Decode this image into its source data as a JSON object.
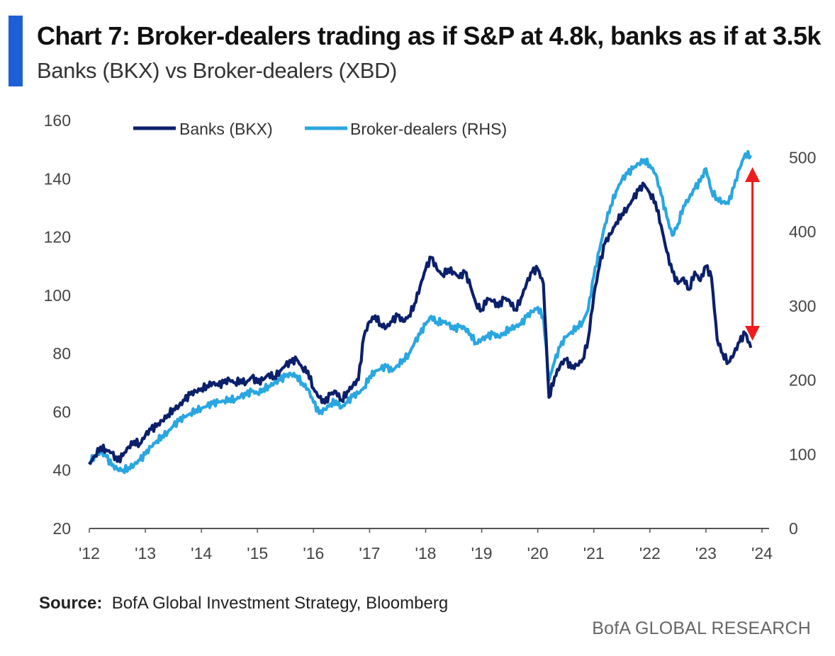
{
  "title": "Chart 7: Broker-dealers trading as if S&P at 4.8k, banks as if at 3.5k",
  "subtitle": "Banks (BKX) vs Broker-dealers (XBD)",
  "source_label": "Source:",
  "source_text": "BofA Global Investment Strategy, Bloomberg",
  "brand": "BofA GLOBAL RESEARCH",
  "colors": {
    "banks": "#0b1f6b",
    "brokers": "#2aa6e0",
    "arrow": "#ee1c1c",
    "accent": "#1f5fd6"
  },
  "chart_data": {
    "type": "line",
    "x_tick_labels": [
      "'12",
      "'13",
      "'14",
      "'15",
      "'16",
      "'17",
      "'18",
      "'19",
      "'20",
      "'21",
      "'22",
      "'23",
      "'24"
    ],
    "xlim": [
      2012,
      2024
    ],
    "ylim_left": [
      20,
      160
    ],
    "ylim_right": [
      0,
      550
    ],
    "left_ticks": [
      20,
      40,
      60,
      80,
      100,
      120,
      140,
      160
    ],
    "right_ticks": [
      0,
      100,
      200,
      300,
      400,
      500
    ],
    "legend": [
      "Banks (BKX)",
      "Broker-dealers (RHS)"
    ],
    "legend_position": "top-left",
    "annotation": "red double-headed arrow at late 2023 between Broker-dealers ~480 (RHS) and Banks ~85 (LHS)",
    "series": [
      {
        "name": "Banks (BKX)",
        "axis": "left",
        "points": [
          [
            2012.0,
            42
          ],
          [
            2012.1,
            45
          ],
          [
            2012.2,
            48
          ],
          [
            2012.3,
            47
          ],
          [
            2012.4,
            46
          ],
          [
            2012.5,
            43
          ],
          [
            2012.6,
            45
          ],
          [
            2012.7,
            48
          ],
          [
            2012.8,
            50
          ],
          [
            2012.9,
            49
          ],
          [
            2013.0,
            52
          ],
          [
            2013.1,
            54
          ],
          [
            2013.2,
            55
          ],
          [
            2013.3,
            57
          ],
          [
            2013.4,
            59
          ],
          [
            2013.5,
            61
          ],
          [
            2013.6,
            62
          ],
          [
            2013.7,
            64
          ],
          [
            2013.8,
            66
          ],
          [
            2013.9,
            67
          ],
          [
            2014.0,
            68
          ],
          [
            2014.1,
            69
          ],
          [
            2014.2,
            70
          ],
          [
            2014.3,
            69
          ],
          [
            2014.4,
            70
          ],
          [
            2014.5,
            71
          ],
          [
            2014.6,
            70
          ],
          [
            2014.7,
            71
          ],
          [
            2014.8,
            70
          ],
          [
            2014.9,
            72
          ],
          [
            2015.0,
            70
          ],
          [
            2015.1,
            71
          ],
          [
            2015.2,
            73
          ],
          [
            2015.3,
            72
          ],
          [
            2015.4,
            74
          ],
          [
            2015.5,
            76
          ],
          [
            2015.6,
            77
          ],
          [
            2015.7,
            78
          ],
          [
            2015.8,
            75
          ],
          [
            2015.9,
            74
          ],
          [
            2016.0,
            68
          ],
          [
            2016.1,
            65
          ],
          [
            2016.2,
            63
          ],
          [
            2016.3,
            66
          ],
          [
            2016.4,
            67
          ],
          [
            2016.5,
            64
          ],
          [
            2016.6,
            67
          ],
          [
            2016.7,
            69
          ],
          [
            2016.8,
            71
          ],
          [
            2016.9,
            86
          ],
          [
            2017.0,
            91
          ],
          [
            2017.1,
            93
          ],
          [
            2017.2,
            90
          ],
          [
            2017.3,
            89
          ],
          [
            2017.4,
            91
          ],
          [
            2017.5,
            93
          ],
          [
            2017.6,
            91
          ],
          [
            2017.7,
            93
          ],
          [
            2017.8,
            97
          ],
          [
            2017.9,
            103
          ],
          [
            2018.0,
            109
          ],
          [
            2018.1,
            113
          ],
          [
            2018.2,
            109
          ],
          [
            2018.3,
            107
          ],
          [
            2018.4,
            109
          ],
          [
            2018.5,
            108
          ],
          [
            2018.6,
            106
          ],
          [
            2018.7,
            108
          ],
          [
            2018.8,
            103
          ],
          [
            2018.9,
            97
          ],
          [
            2019.0,
            95
          ],
          [
            2019.1,
            99
          ],
          [
            2019.2,
            98
          ],
          [
            2019.3,
            96
          ],
          [
            2019.4,
            99
          ],
          [
            2019.5,
            98
          ],
          [
            2019.6,
            95
          ],
          [
            2019.7,
            99
          ],
          [
            2019.8,
            104
          ],
          [
            2019.9,
            108
          ],
          [
            2020.0,
            109
          ],
          [
            2020.1,
            104
          ],
          [
            2020.2,
            65
          ],
          [
            2020.3,
            72
          ],
          [
            2020.4,
            76
          ],
          [
            2020.5,
            78
          ],
          [
            2020.6,
            75
          ],
          [
            2020.7,
            76
          ],
          [
            2020.8,
            78
          ],
          [
            2020.9,
            85
          ],
          [
            2021.0,
            100
          ],
          [
            2021.1,
            110
          ],
          [
            2021.2,
            118
          ],
          [
            2021.3,
            121
          ],
          [
            2021.4,
            125
          ],
          [
            2021.5,
            128
          ],
          [
            2021.6,
            130
          ],
          [
            2021.7,
            133
          ],
          [
            2021.8,
            136
          ],
          [
            2021.9,
            138
          ],
          [
            2022.0,
            135
          ],
          [
            2022.1,
            132
          ],
          [
            2022.2,
            124
          ],
          [
            2022.3,
            115
          ],
          [
            2022.4,
            108
          ],
          [
            2022.5,
            104
          ],
          [
            2022.6,
            106
          ],
          [
            2022.7,
            102
          ],
          [
            2022.8,
            108
          ],
          [
            2022.9,
            105
          ],
          [
            2023.0,
            110
          ],
          [
            2023.1,
            106
          ],
          [
            2023.2,
            85
          ],
          [
            2023.3,
            80
          ],
          [
            2023.4,
            77
          ],
          [
            2023.5,
            80
          ],
          [
            2023.6,
            84
          ],
          [
            2023.7,
            87
          ],
          [
            2023.8,
            82
          ]
        ]
      },
      {
        "name": "Broker-dealers (RHS)",
        "axis": "right",
        "points": [
          [
            2012.0,
            90
          ],
          [
            2012.1,
            98
          ],
          [
            2012.2,
            103
          ],
          [
            2012.3,
            97
          ],
          [
            2012.4,
            85
          ],
          [
            2012.5,
            80
          ],
          [
            2012.6,
            79
          ],
          [
            2012.7,
            82
          ],
          [
            2012.8,
            86
          ],
          [
            2012.9,
            92
          ],
          [
            2013.0,
            100
          ],
          [
            2013.1,
            110
          ],
          [
            2013.2,
            118
          ],
          [
            2013.3,
            125
          ],
          [
            2013.4,
            130
          ],
          [
            2013.5,
            138
          ],
          [
            2013.6,
            145
          ],
          [
            2013.7,
            150
          ],
          [
            2013.8,
            155
          ],
          [
            2013.9,
            160
          ],
          [
            2014.0,
            162
          ],
          [
            2014.1,
            165
          ],
          [
            2014.2,
            168
          ],
          [
            2014.3,
            170
          ],
          [
            2014.4,
            172
          ],
          [
            2014.5,
            175
          ],
          [
            2014.6,
            174
          ],
          [
            2014.7,
            178
          ],
          [
            2014.8,
            180
          ],
          [
            2014.9,
            185
          ],
          [
            2015.0,
            182
          ],
          [
            2015.1,
            188
          ],
          [
            2015.2,
            192
          ],
          [
            2015.3,
            196
          ],
          [
            2015.4,
            200
          ],
          [
            2015.5,
            205
          ],
          [
            2015.6,
            208
          ],
          [
            2015.7,
            206
          ],
          [
            2015.8,
            196
          ],
          [
            2015.9,
            188
          ],
          [
            2016.0,
            170
          ],
          [
            2016.1,
            155
          ],
          [
            2016.2,
            160
          ],
          [
            2016.3,
            168
          ],
          [
            2016.4,
            172
          ],
          [
            2016.5,
            163
          ],
          [
            2016.6,
            170
          ],
          [
            2016.7,
            178
          ],
          [
            2016.8,
            182
          ],
          [
            2016.9,
            190
          ],
          [
            2017.0,
            205
          ],
          [
            2017.1,
            212
          ],
          [
            2017.2,
            215
          ],
          [
            2017.3,
            218
          ],
          [
            2017.4,
            212
          ],
          [
            2017.5,
            220
          ],
          [
            2017.6,
            228
          ],
          [
            2017.7,
            235
          ],
          [
            2017.8,
            250
          ],
          [
            2017.9,
            262
          ],
          [
            2018.0,
            275
          ],
          [
            2018.1,
            286
          ],
          [
            2018.2,
            278
          ],
          [
            2018.3,
            280
          ],
          [
            2018.4,
            276
          ],
          [
            2018.5,
            268
          ],
          [
            2018.6,
            272
          ],
          [
            2018.7,
            270
          ],
          [
            2018.8,
            262
          ],
          [
            2018.9,
            250
          ],
          [
            2019.0,
            255
          ],
          [
            2019.1,
            258
          ],
          [
            2019.2,
            262
          ],
          [
            2019.3,
            258
          ],
          [
            2019.4,
            264
          ],
          [
            2019.5,
            270
          ],
          [
            2019.6,
            272
          ],
          [
            2019.7,
            275
          ],
          [
            2019.8,
            285
          ],
          [
            2019.9,
            292
          ],
          [
            2020.0,
            298
          ],
          [
            2020.1,
            285
          ],
          [
            2020.2,
            200
          ],
          [
            2020.3,
            225
          ],
          [
            2020.4,
            245
          ],
          [
            2020.5,
            258
          ],
          [
            2020.6,
            265
          ],
          [
            2020.7,
            272
          ],
          [
            2020.8,
            278
          ],
          [
            2020.9,
            295
          ],
          [
            2021.0,
            340
          ],
          [
            2021.1,
            375
          ],
          [
            2021.2,
            410
          ],
          [
            2021.3,
            435
          ],
          [
            2021.4,
            455
          ],
          [
            2021.5,
            470
          ],
          [
            2021.6,
            478
          ],
          [
            2021.7,
            485
          ],
          [
            2021.8,
            492
          ],
          [
            2021.9,
            497
          ],
          [
            2022.0,
            490
          ],
          [
            2022.1,
            478
          ],
          [
            2022.2,
            450
          ],
          [
            2022.3,
            420
          ],
          [
            2022.4,
            395
          ],
          [
            2022.5,
            410
          ],
          [
            2022.6,
            435
          ],
          [
            2022.7,
            445
          ],
          [
            2022.8,
            458
          ],
          [
            2022.9,
            468
          ],
          [
            2023.0,
            485
          ],
          [
            2023.1,
            455
          ],
          [
            2023.2,
            445
          ],
          [
            2023.3,
            440
          ],
          [
            2023.4,
            438
          ],
          [
            2023.5,
            460
          ],
          [
            2023.6,
            485
          ],
          [
            2023.7,
            505
          ],
          [
            2023.8,
            503
          ]
        ]
      }
    ]
  }
}
